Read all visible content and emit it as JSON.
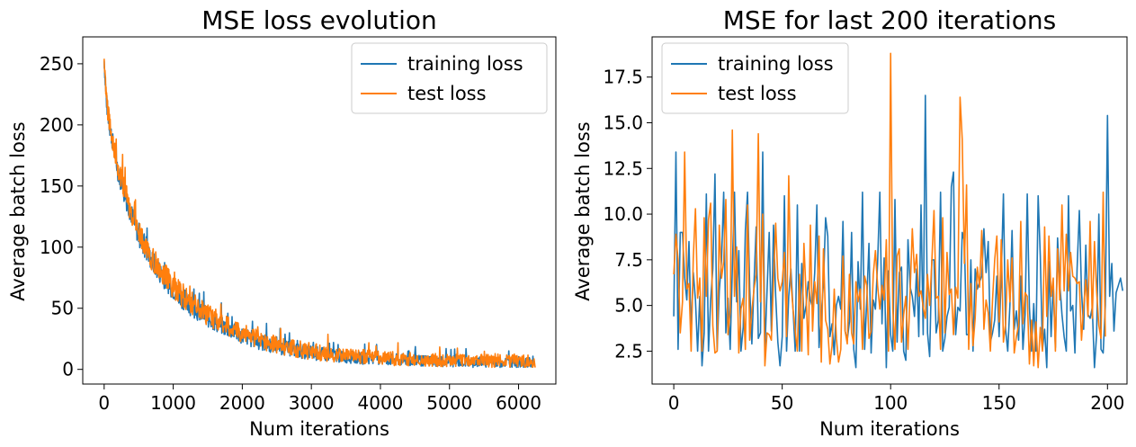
{
  "colors": {
    "training": "#1f77b4",
    "test": "#ff7f0e"
  },
  "chart_data": [
    {
      "type": "line",
      "title": "MSE loss evolution",
      "xlabel": "Num iterations",
      "ylabel": "Average batch loss",
      "xlim": [
        -310,
        6540
      ],
      "ylim": [
        -12,
        272
      ],
      "xticks": [
        0,
        1000,
        2000,
        3000,
        4000,
        5000,
        6000
      ],
      "yticks": [
        0,
        50,
        100,
        150,
        200,
        250
      ],
      "legend_position": "upper right",
      "series": [
        {
          "name": "training loss",
          "color": "#1f77b4",
          "x": [
            0,
            25,
            50,
            75,
            100,
            150,
            200,
            300,
            400,
            500,
            600,
            700,
            800,
            1000,
            1200,
            1400,
            1600,
            1800,
            2000,
            2300,
            2600,
            3000,
            3400,
            3800,
            4200,
            4600,
            5000,
            5400,
            5800,
            6240
          ],
          "y": [
            252,
            225,
            210,
            200,
            192,
            177,
            162,
            142,
            125,
            109,
            97,
            87,
            79,
            65,
            54,
            45,
            38,
            32,
            27,
            21,
            17,
            13,
            10,
            8.5,
            7.3,
            6.5,
            6.0,
            5.7,
            5.5,
            5.4
          ],
          "noise": [
            4,
            8,
            8,
            8,
            8,
            8,
            9,
            9,
            9,
            9,
            9,
            9,
            9,
            9,
            9,
            8,
            8,
            7,
            7,
            7,
            6,
            6,
            5,
            5,
            5,
            4.5,
            4.5,
            4.5,
            4.5,
            4.5
          ]
        },
        {
          "name": "test loss",
          "color": "#ff7f0e",
          "x": [
            0,
            25,
            50,
            75,
            100,
            150,
            200,
            300,
            400,
            500,
            600,
            700,
            800,
            1000,
            1200,
            1400,
            1600,
            1800,
            2000,
            2300,
            2600,
            3000,
            3400,
            3800,
            4200,
            4600,
            5000,
            5400,
            5800,
            6240
          ],
          "y": [
            252,
            228,
            212,
            202,
            194,
            179,
            164,
            144,
            127,
            111,
            99,
            89,
            81,
            67,
            56,
            47,
            40,
            34,
            29,
            23,
            18,
            14,
            11,
            9.5,
            8.3,
            7.5,
            7.0,
            6.7,
            6.5,
            6.4
          ],
          "noise": [
            4,
            8,
            8,
            8,
            8,
            9,
            10,
            10,
            10,
            10,
            10,
            10,
            10,
            10,
            10,
            9,
            9,
            8,
            8,
            8,
            7,
            7,
            6,
            6,
            6,
            5.5,
            5.5,
            5.5,
            5.5,
            5.5
          ]
        }
      ]
    },
    {
      "type": "line",
      "title": "MSE for last 200 iterations",
      "xlabel": "Num iterations",
      "ylabel": "Average batch loss",
      "xlim": [
        -10,
        209
      ],
      "ylim": [
        0.7,
        19.7
      ],
      "xticks": [
        0,
        50,
        100,
        150,
        200
      ],
      "yticks": [
        2.5,
        5.0,
        7.5,
        10.0,
        12.5,
        15.0,
        17.5
      ],
      "legend_position": "upper left",
      "series": [
        {
          "name": "training loss",
          "color": "#1f77b4",
          "values": [
            4.4,
            13.4,
            2.6,
            9.0,
            9.0,
            6.5,
            5.3,
            8.5,
            3.4,
            6.8,
            5.3,
            2.5,
            5.5,
            1.7,
            3.5,
            11.1,
            2.5,
            5.3,
            7.0,
            12.2,
            2.5,
            5.8,
            7.5,
            11.2,
            3.5,
            5.4,
            2.6,
            7.0,
            11.2,
            5.2,
            8.0,
            2.5,
            3.8,
            9.1,
            11.2,
            6.0,
            2.9,
            6.2,
            9.3,
            3.2,
            3.5,
            13.4,
            2.6,
            5.8,
            9.0,
            3.6,
            9.4,
            5.5,
            3.0,
            1.7,
            3.3,
            11.0,
            2.5,
            5.5,
            7.0,
            4.8,
            2.5,
            10.5,
            2.5,
            7.3,
            4.3,
            5.0,
            6.3,
            5.3,
            4.9,
            6.8,
            10.5,
            2.7,
            4.5,
            6.2,
            9.8,
            8.8,
            3.3,
            4.0,
            2.3,
            5.0,
            5.5,
            4.8,
            9.6,
            3.6,
            3.1,
            4.1,
            9.0,
            2.6,
            1.6,
            7.4,
            4.8,
            11.2,
            2.6,
            5.3,
            8.4,
            2.4,
            5.3,
            4.8,
            7.3,
            11.2,
            4.0,
            7.6,
            1.6,
            6.9,
            3.4,
            2.5,
            10.8,
            3.0,
            6.8,
            7.1,
            2.5,
            2.0,
            8.6,
            6.0,
            5.5,
            4.4,
            7.0,
            3.3,
            10.5,
            3.4,
            16.5,
            3.5,
            2.2,
            7.5,
            7.5,
            3.5,
            4.2,
            11.2,
            2.5,
            3.2,
            4.4,
            4.9,
            11.5,
            12.3,
            3.4,
            4.9,
            4.7,
            9.0,
            8.5,
            3.4,
            3.4,
            7.5,
            2.5,
            7.0,
            5.9,
            6.3,
            6.6,
            9.2,
            6.8,
            8.5,
            3.0,
            3.5,
            4.2,
            6.6,
            3.3,
            6.7,
            11.1,
            3.7,
            2.5,
            5.0,
            9.1,
            3.7,
            4.7,
            3.1,
            6.6,
            2.6,
            4.5,
            11.1,
            4.9,
            2.5,
            5.1,
            2.5,
            11.0,
            7.7,
            2.6,
            3.7,
            1.6,
            7.4,
            3.3,
            6.2,
            2.7,
            8.7,
            6.2,
            4.5,
            3.3,
            2.5,
            11.0,
            4.7,
            5.0,
            2.4,
            7.0,
            10.2,
            5.8,
            3.7,
            8.3,
            4.5,
            4.3,
            4.9,
            1.6,
            3.4,
            10.0,
            2.6,
            2.4,
            5.0,
            15.4,
            5.5,
            7.3,
            3.6,
            5.7,
            6.1,
            6.5,
            5.8
          ],
          "label_note": ""
        },
        {
          "name": "test loss",
          "color": "#ff7f0e",
          "values": [
            6.7,
            8.9,
            7.5,
            3.5,
            5.2,
            13.4,
            5.9,
            6.2,
            2.5,
            7.6,
            10.3,
            5.4,
            6.5,
            2.5,
            9.8,
            5.5,
            9.7,
            10.6,
            3.9,
            2.4,
            2.5,
            9.4,
            6.5,
            7.4,
            10.8,
            3.4,
            4.7,
            14.6,
            5.5,
            8.2,
            2.4,
            4.8,
            5.4,
            2.6,
            10.5,
            3.1,
            4.7,
            5.9,
            6.7,
            14.4,
            5.2,
            10.0,
            1.7,
            3.5,
            3.4,
            3.1,
            6.4,
            9.5,
            6.5,
            5.8,
            6.3,
            7.9,
            3.3,
            12.1,
            6.3,
            4.8,
            3.6,
            2.5,
            6.7,
            2.5,
            8.4,
            5.6,
            2.3,
            9.4,
            3.6,
            6.3,
            5.1,
            8.8,
            1.9,
            8.1,
            4.2,
            3.7,
            1.8,
            2.8,
            5.9,
            3.2,
            1.9,
            2.6,
            7.7,
            3.6,
            2.9,
            6.7,
            3.5,
            2.9,
            6.3,
            5.2,
            5.9,
            2.6,
            6.6,
            6.1,
            3.2,
            3.6,
            6.7,
            8.0,
            6.1,
            4.8,
            6.1,
            5.3,
            8.6,
            2.5,
            18.8,
            4.8,
            2.6,
            7.7,
            8.1,
            3.0,
            4.5,
            5.5,
            2.6,
            5.8,
            9.2,
            6.8,
            7.8,
            5.5,
            5.8,
            4.9,
            4.3,
            6.7,
            5.0,
            7.4,
            10.2,
            5.4,
            5.5,
            2.6,
            9.8,
            3.5,
            7.9,
            5.6,
            5.9,
            3.4,
            6.0,
            5.4,
            16.4,
            14.1,
            7.3,
            11.6,
            2.6,
            6.2,
            2.8,
            4.3,
            7.1,
            6.0,
            9.1,
            3.7,
            5.3,
            4.6,
            2.5,
            5.3,
            7.5,
            8.8,
            4.1,
            8.6,
            3.0,
            4.0,
            7.5,
            5.2,
            7.6,
            2.4,
            3.3,
            3.9,
            9.6,
            4.0,
            5.7,
            5.5,
            1.8,
            4.2,
            1.7,
            4.1,
            1.6,
            3.8,
            2.5,
            9.3,
            4.4,
            8.8,
            5.5,
            6.5,
            2.5,
            8.1,
            5.3,
            10.5,
            5.8,
            8.9,
            5.8,
            7.9,
            6.6,
            6.5,
            6.2,
            6.3,
            3.1,
            4.9,
            6.4,
            4.4,
            9.6,
            4.3,
            8.5,
            5.8,
            3.9,
            3.2,
            11.2,
            3.3
          ],
          "label_note": ""
        }
      ]
    }
  ]
}
